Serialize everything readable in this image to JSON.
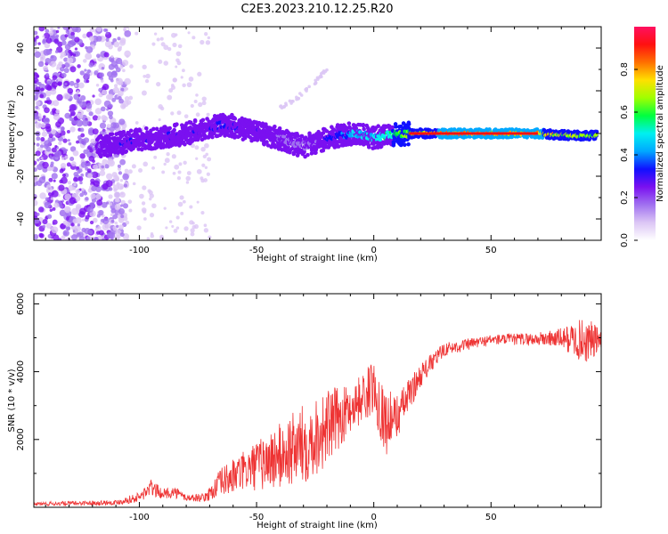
{
  "title": "C2E3.2023.210.12.25.R20",
  "colors": {
    "snr_line": "#ee3333",
    "colormap": [
      "#ffffff",
      "#dcc6f5",
      "#a070f0",
      "#7a10f0",
      "#1010ff",
      "#00a8ff",
      "#00f0f0",
      "#00ff40",
      "#a0ff00",
      "#ffe000",
      "#ff7000",
      "#ff1010",
      "#ff1060"
    ]
  },
  "chart_data": [
    {
      "type": "heatmap",
      "xlabel": "Height of straight line (km)",
      "ylabel": "Frequency (Hz)",
      "xlim": [
        -145,
        97
      ],
      "ylim": [
        -50,
        50
      ],
      "xticks": [
        -100,
        -50,
        0,
        50
      ],
      "yticks": [
        -40,
        -20,
        0,
        20,
        40
      ],
      "grid": false,
      "colorbar": {
        "label": "Normalized spectral amplitude",
        "range": [
          0,
          1
        ],
        "ticks": [
          0.0,
          0.2,
          0.4,
          0.6,
          0.8
        ],
        "tick_labels": [
          "0.0",
          "0.2",
          "0.4",
          "0.6",
          "0.8"
        ]
      },
      "ridge": {
        "height_km": [
          -118,
          -110,
          -100,
          -90,
          -80,
          -70,
          -62,
          -55,
          -45,
          -38,
          -30,
          -22,
          -15,
          -8,
          0,
          5,
          15,
          30,
          50,
          70,
          85,
          95
        ],
        "frequency_hz": [
          -6,
          -5,
          -3,
          -2,
          0,
          3,
          4,
          2,
          -1,
          -3,
          -6,
          -3,
          -1,
          0,
          -2,
          -1,
          0,
          0,
          0,
          0,
          -1,
          -1
        ],
        "amplitude": [
          0.25,
          0.3,
          0.3,
          0.3,
          0.3,
          0.3,
          0.35,
          0.3,
          0.3,
          0.2,
          0.15,
          0.3,
          0.4,
          0.5,
          0.55,
          0.6,
          0.75,
          0.85,
          0.85,
          0.85,
          0.75,
          0.7
        ]
      },
      "secondary_trace": {
        "height_km": [
          -40,
          -35,
          -30,
          -25,
          -20
        ],
        "frequency_hz": [
          12,
          15,
          19,
          24,
          30
        ],
        "amplitude": 0.08
      },
      "noise_region_km": [
        -145,
        -105
      ]
    },
    {
      "type": "line",
      "xlabel": "Height of straight line (km)",
      "ylabel": "SNR (10 * v/v)",
      "xlim": [
        -145,
        97
      ],
      "ylim": [
        0,
        6300
      ],
      "xticks": [
        -100,
        -50,
        0,
        50
      ],
      "yticks": [
        2000,
        4000,
        6000
      ],
      "grid": false,
      "series": [
        {
          "envelope_x": [
            -145,
            -110,
            -100,
            -95,
            -90,
            -85,
            -80,
            -72,
            -65,
            -55,
            -40,
            -30,
            -20,
            -10,
            0,
            5,
            10,
            20,
            30,
            50,
            70,
            80,
            90,
            97
          ],
          "baseline": [
            80,
            120,
            250,
            500,
            350,
            400,
            250,
            250,
            600,
            900,
            1200,
            1500,
            2000,
            2700,
            3300,
            2200,
            2500,
            3800,
            4600,
            4900,
            4900,
            4900,
            4700,
            4800
          ],
          "variation": [
            120,
            150,
            300,
            500,
            300,
            350,
            200,
            250,
            900,
            1200,
            2000,
            2400,
            2300,
            1400,
            1600,
            2000,
            1300,
            700,
            400,
            300,
            400,
            600,
            1400,
            800
          ]
        }
      ]
    }
  ]
}
